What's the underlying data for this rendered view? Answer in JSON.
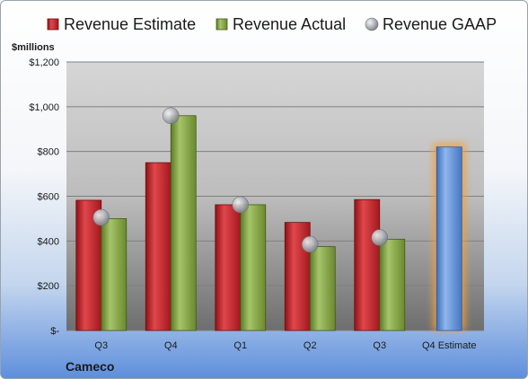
{
  "chart_data": {
    "type": "bar",
    "company": "Cameco",
    "unit_label": "$millions",
    "categories": [
      "Q3",
      "Q4",
      "Q1",
      "Q2",
      "Q3",
      "Q4 Estimate"
    ],
    "series": [
      {
        "name": "Revenue Estimate",
        "values": [
          582,
          750,
          562,
          483,
          585,
          null
        ],
        "color": "#c0262c"
      },
      {
        "name": "Revenue Actual",
        "values": [
          500,
          960,
          562,
          375,
          408,
          null
        ],
        "color": "#7d9c3c"
      },
      {
        "name": "Revenue GAAP",
        "values": [
          505,
          960,
          562,
          385,
          415,
          null
        ],
        "color": "#b0b4bb",
        "marker": "circle"
      },
      {
        "name": "Q4 Estimate",
        "values": [
          null,
          null,
          null,
          null,
          null,
          820
        ],
        "color": "#5b8fd6",
        "highlight": "#f0a040"
      }
    ],
    "y_ticks": [
      0,
      200,
      400,
      600,
      800,
      1000,
      1200
    ],
    "y_tick_labels": [
      "$-",
      "$200",
      "$400",
      "$600",
      "$800",
      "$1,000",
      "$1,200"
    ],
    "ylim": [
      0,
      1200
    ],
    "grid": true,
    "legend_position": "top"
  }
}
